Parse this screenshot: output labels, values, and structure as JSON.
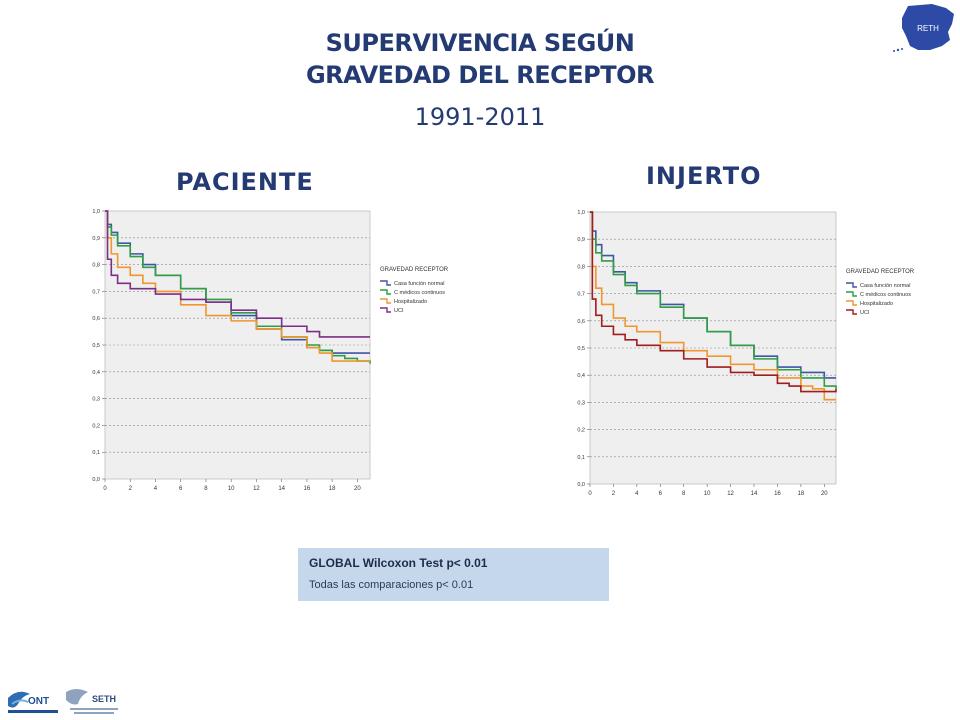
{
  "slide": {
    "title_line1": "SUPERVIVENCIA SEGÚN",
    "title_line2": "GRAVEDAD DEL RECEPTOR",
    "years": "1991-2011",
    "stats_title": "GLOBAL Wilcoxon Test  p< 0.01",
    "stats_note": "Todas las comparaciones p< 0.01",
    "logo_map_text": "RETH",
    "logo_ont_text": "ONT",
    "logo_seth_text": "SETH"
  },
  "chart_data": [
    {
      "type": "line",
      "panel_title": "PACIENTE",
      "legend_title": "GRAVEDAD RECEPTOR",
      "legend_position": "right",
      "xlim": [
        0,
        21
      ],
      "ylim": [
        0,
        1
      ],
      "x_ticks": [
        "0",
        "2",
        "4",
        "6",
        "8",
        "10",
        "12",
        "14",
        "16",
        "18",
        "20"
      ],
      "y_ticks": [
        "0,0",
        "0,1",
        "0,2",
        "0,3",
        "0,4",
        "0,5",
        "0,6",
        "0,7",
        "0,8",
        "0,9",
        "1,0"
      ],
      "grid": true,
      "series": [
        {
          "name": "Casa función normal",
          "color": "#3f55a6",
          "x": [
            0,
            0.2,
            0.5,
            1,
            2,
            3,
            4,
            6,
            8,
            10,
            12,
            14,
            16,
            17,
            18,
            20,
            21
          ],
          "y": [
            1.0,
            0.95,
            0.92,
            0.88,
            0.84,
            0.8,
            0.76,
            0.71,
            0.66,
            0.61,
            0.56,
            0.52,
            0.49,
            0.48,
            0.47,
            0.47,
            0.47
          ]
        },
        {
          "name": "C médicos continuos",
          "color": "#2f9e44",
          "x": [
            0,
            0.2,
            0.5,
            1,
            2,
            3,
            4,
            6,
            8,
            10,
            12,
            14,
            16,
            17,
            18,
            19,
            20,
            21
          ],
          "y": [
            1.0,
            0.94,
            0.91,
            0.87,
            0.83,
            0.79,
            0.76,
            0.71,
            0.67,
            0.62,
            0.57,
            0.53,
            0.5,
            0.48,
            0.46,
            0.45,
            0.44,
            0.43
          ]
        },
        {
          "name": "Hospitalizado",
          "color": "#f0962e",
          "x": [
            0,
            0.2,
            0.5,
            1,
            2,
            3,
            4,
            6,
            8,
            10,
            12,
            14,
            16,
            17,
            18,
            20,
            21
          ],
          "y": [
            1.0,
            0.9,
            0.84,
            0.79,
            0.76,
            0.73,
            0.7,
            0.65,
            0.61,
            0.59,
            0.56,
            0.53,
            0.49,
            0.47,
            0.44,
            0.44,
            0.44
          ]
        },
        {
          "name": "UCI",
          "color": "#7d2e85",
          "x": [
            0,
            0.2,
            0.5,
            1,
            2,
            4,
            6,
            8,
            10,
            12,
            14,
            16,
            17,
            18,
            20,
            21
          ],
          "y": [
            1.0,
            0.82,
            0.76,
            0.73,
            0.71,
            0.69,
            0.67,
            0.66,
            0.63,
            0.6,
            0.57,
            0.55,
            0.53,
            0.53,
            0.53,
            0.53
          ]
        }
      ]
    },
    {
      "type": "line",
      "panel_title": "INJERTO",
      "legend_title": "GRAVEDAD RECEPTOR",
      "legend_position": "right",
      "xlim": [
        0,
        21
      ],
      "ylim": [
        0,
        1
      ],
      "x_ticks": [
        "0",
        "2",
        "4",
        "6",
        "8",
        "10",
        "12",
        "14",
        "16",
        "18",
        "20"
      ],
      "y_ticks": [
        "0,0",
        "0,1",
        "0,2",
        "0,3",
        "0,4",
        "0,5",
        "0,6",
        "0,7",
        "0,8",
        "0,9",
        "1,0"
      ],
      "grid": true,
      "series": [
        {
          "name": "Casa función normal",
          "color": "#3f55a6",
          "x": [
            0,
            0.2,
            0.5,
            1,
            2,
            3,
            4,
            6,
            8,
            10,
            12,
            14,
            16,
            18,
            20,
            21
          ],
          "y": [
            1.0,
            0.93,
            0.88,
            0.84,
            0.78,
            0.74,
            0.71,
            0.66,
            0.61,
            0.56,
            0.51,
            0.47,
            0.43,
            0.41,
            0.39,
            0.39
          ]
        },
        {
          "name": "C médicos continuos",
          "color": "#2f9e44",
          "x": [
            0,
            0.2,
            0.5,
            1,
            2,
            3,
            4,
            6,
            8,
            10,
            12,
            14,
            16,
            18,
            20,
            21
          ],
          "y": [
            1.0,
            0.9,
            0.85,
            0.82,
            0.77,
            0.73,
            0.7,
            0.65,
            0.61,
            0.56,
            0.51,
            0.46,
            0.42,
            0.39,
            0.36,
            0.35
          ]
        },
        {
          "name": "Hospitalizado",
          "color": "#f0962e",
          "x": [
            0,
            0.2,
            0.5,
            1,
            2,
            3,
            4,
            6,
            8,
            10,
            12,
            14,
            16,
            18,
            19,
            20,
            21
          ],
          "y": [
            1.0,
            0.8,
            0.72,
            0.66,
            0.61,
            0.58,
            0.56,
            0.52,
            0.49,
            0.47,
            0.44,
            0.42,
            0.39,
            0.36,
            0.35,
            0.31,
            0.31
          ]
        },
        {
          "name": "UCI",
          "color": "#a11c1c",
          "x": [
            0,
            0.2,
            0.5,
            1,
            2,
            3,
            4,
            6,
            8,
            10,
            12,
            14,
            16,
            17,
            18,
            20,
            21
          ],
          "y": [
            1.0,
            0.68,
            0.62,
            0.58,
            0.55,
            0.53,
            0.51,
            0.49,
            0.46,
            0.43,
            0.41,
            0.4,
            0.37,
            0.36,
            0.34,
            0.34,
            0.35
          ]
        }
      ]
    }
  ]
}
